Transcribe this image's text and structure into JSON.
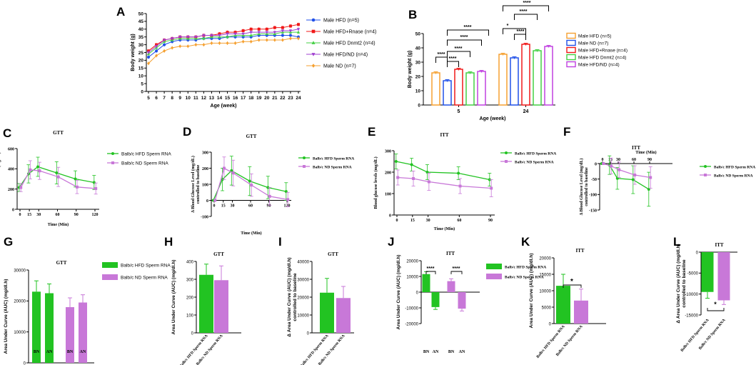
{
  "colors": {
    "green": "#22c322",
    "violet": "#c878d8",
    "blue": "#2050e8",
    "red": "#f01818",
    "green_light": "#44d044",
    "purple": "#a040d0",
    "orange": "#f5a030",
    "bn": "#1b8a1b"
  },
  "chart_data": [
    {
      "id": "A",
      "type": "line",
      "panel_label": "A",
      "title": "",
      "xlabel": "Age (week)",
      "ylabel": "Body weight (g)",
      "categories": [
        "5",
        "6",
        "7",
        "8",
        "9",
        "10",
        "11",
        "12",
        "13",
        "14",
        "15",
        "16",
        "17",
        "18",
        "19",
        "20",
        "21",
        "22",
        "23",
        "24"
      ],
      "ylim": [
        0,
        50
      ],
      "yticks": [
        0,
        5,
        10,
        15,
        20,
        25,
        30,
        35,
        40,
        45,
        50
      ],
      "series": [
        {
          "name": "Male HFD (n=5)",
          "color": "#2050e8",
          "marker": "circle",
          "values": [
            22,
            26,
            30,
            32,
            33,
            33,
            33,
            34,
            34,
            34,
            35,
            35,
            35,
            35,
            36,
            36,
            36,
            36,
            36,
            35
          ]
        },
        {
          "name": "Male HFD+Rnase (n=4)",
          "color": "#f01818",
          "marker": "square",
          "values": [
            26,
            30,
            33,
            34,
            35,
            35,
            35,
            36,
            36,
            37,
            38,
            38,
            39,
            40,
            40,
            40,
            41,
            41,
            42,
            43
          ]
        },
        {
          "name": "Male HFD Dnmt2 (n=4)",
          "color": "#44d044",
          "marker": "triangle",
          "values": [
            24,
            28,
            32,
            33,
            34,
            34,
            34,
            34,
            35,
            35,
            35,
            36,
            36,
            36,
            37,
            37,
            37,
            38,
            38,
            38
          ]
        },
        {
          "name": "Male HFD/ND (n=4)",
          "color": "#a040d0",
          "marker": "triangle-down",
          "values": [
            25,
            29,
            33,
            34,
            35,
            35,
            35,
            36,
            36,
            36,
            37,
            37,
            37,
            38,
            38,
            38,
            38,
            39,
            39,
            40
          ]
        },
        {
          "name": "Male ND (n=7)",
          "color": "#f5a030",
          "marker": "diamond",
          "values": [
            18,
            23,
            26,
            28,
            29,
            29,
            30,
            30,
            31,
            31,
            31,
            31,
            32,
            32,
            33,
            33,
            33,
            33,
            34,
            34
          ]
        }
      ]
    },
    {
      "id": "B",
      "type": "bar",
      "panel_label": "B",
      "xlabel": "Age (week)",
      "ylabel": "Body weight (g)",
      "categories": [
        "5",
        "24"
      ],
      "ylim": [
        0,
        50
      ],
      "yticks": [
        0,
        10,
        20,
        30,
        40,
        50
      ],
      "series": [
        {
          "name": "Male HFD (n=5)",
          "color": "#f5a030",
          "values": [
            22.5,
            35.5
          ]
        },
        {
          "name": "Male ND (n=7)",
          "color": "#2050e8",
          "values": [
            17,
            33
          ]
        },
        {
          "name": "Male HFD+Rnase (n=4)",
          "color": "#f01818",
          "values": [
            25,
            42.5
          ]
        },
        {
          "name": "Male HFD Dnmt2 (n=4)",
          "color": "#44d044",
          "values": [
            22.5,
            38
          ]
        },
        {
          "name": "Male HFD/ND (n=4)",
          "color": "#c040e0",
          "values": [
            23.5,
            41
          ]
        }
      ],
      "annotations": [
        "****",
        "****",
        "****",
        "****",
        "****",
        "*",
        "****",
        "****",
        "****"
      ]
    },
    {
      "id": "C",
      "type": "line",
      "panel_label": "C",
      "title": "GTT",
      "xlabel": "Time (Min)",
      "ylabel": "Blood Glucose Level (mg/dL)",
      "x": [
        0,
        15,
        30,
        60,
        90,
        120
      ],
      "ylim": [
        0,
        600
      ],
      "yticks": [
        0,
        200,
        400,
        600
      ],
      "xticks": [
        0,
        15,
        30,
        60,
        90,
        120
      ],
      "series": [
        {
          "name": "Balb/c HFD Sperm RNA",
          "color": "#22c322",
          "values": [
            215,
            350,
            420,
            360,
            300,
            265
          ],
          "err": [
            40,
            90,
            95,
            110,
            80,
            70
          ]
        },
        {
          "name": "Balb/c ND Sperm RNA",
          "color": "#c878d8",
          "values": [
            215,
            390,
            380,
            320,
            220,
            205
          ],
          "err": [
            40,
            90,
            85,
            95,
            65,
            55
          ]
        }
      ]
    },
    {
      "id": "D",
      "type": "line",
      "panel_label": "D",
      "title": "GTT",
      "xlabel": "Time (Min)",
      "ylabel": "Δ Blood Glucose Level (mg/dL) controlled to baseline",
      "x": [
        0,
        15,
        30,
        60,
        90,
        120
      ],
      "ylim": [
        -100,
        300
      ],
      "yticks": [
        -100,
        0,
        100,
        200,
        300
      ],
      "xticks": [
        0,
        15,
        30,
        60,
        90,
        120
      ],
      "series": [
        {
          "name": "Balb/c HFD Sperm RNA",
          "color": "#22c322",
          "values": [
            0,
            130,
            185,
            120,
            80,
            55
          ],
          "err": [
            0,
            70,
            90,
            90,
            70,
            55
          ]
        },
        {
          "name": "Balb/c ND Sperm RNA",
          "color": "#c878d8",
          "values": [
            0,
            200,
            170,
            95,
            25,
            5
          ],
          "err": [
            0,
            70,
            80,
            70,
            55,
            45
          ]
        }
      ]
    },
    {
      "id": "E",
      "type": "line",
      "panel_label": "E",
      "title": "ITT",
      "xlabel": "Time (Min)",
      "ylabel": "Blood glucose levels (mg/dL)",
      "x": [
        0,
        15,
        30,
        60,
        90
      ],
      "ylim": [
        0,
        300
      ],
      "yticks": [
        0,
        100,
        200,
        300
      ],
      "xticks": [
        0,
        15,
        30,
        60,
        90
      ],
      "series": [
        {
          "name": "Balb/c HFD Sperm RNA",
          "color": "#22c322",
          "values": [
            250,
            235,
            200,
            195,
            165
          ],
          "err": [
            35,
            30,
            35,
            30,
            30
          ]
        },
        {
          "name": "Balb/c ND Sperm RNA",
          "color": "#c878d8",
          "values": [
            175,
            170,
            155,
            135,
            125
          ],
          "err": [
            35,
            35,
            40,
            35,
            40
          ]
        }
      ]
    },
    {
      "id": "F",
      "type": "line",
      "panel_label": "F",
      "title": "ITT",
      "xlabel": "Time (Min)",
      "ylabel": "Δ Blood Glucose Level (mg/dL) controlled to baseline",
      "x": [
        0,
        15,
        30,
        60,
        90
      ],
      "ylim": [
        -150,
        0
      ],
      "yticks": [
        -150,
        -100,
        -50,
        0
      ],
      "xticks": [
        0,
        15,
        30,
        60,
        90
      ],
      "series": [
        {
          "name": "Balb/c HFD Sperm RNA",
          "color": "#22c322",
          "values": [
            0,
            -5,
            -48,
            -52,
            -83
          ],
          "err": [
            0,
            30,
            35,
            45,
            55
          ]
        },
        {
          "name": "Balb/c ND Sperm RNA",
          "color": "#c878d8",
          "values": [
            0,
            -8,
            -20,
            -37,
            -45
          ],
          "err": [
            0,
            25,
            25,
            30,
            35
          ]
        }
      ]
    },
    {
      "id": "G",
      "type": "bar",
      "panel_label": "G",
      "title": "GTT",
      "ylabel": "Area Under Curve (AUC) (mg/dl.h)",
      "categories": [
        "BN",
        "AN",
        "BN",
        "AN"
      ],
      "ylim": [
        0,
        30000
      ],
      "yticks": [
        0,
        10000,
        20000,
        30000
      ],
      "values": [
        23000,
        22500,
        18000,
        19500
      ],
      "err": [
        3500,
        3000,
        3000,
        2500
      ],
      "bar_colors": [
        "#22c322",
        "#22c322",
        "#c878d8",
        "#c878d8"
      ],
      "legend": [
        "Balb/c HFD Sperm RNA",
        "Balb/c ND Sperm RNA"
      ]
    },
    {
      "id": "H",
      "type": "bar",
      "panel_label": "H",
      "title": "GTT",
      "ylabel": "Area Under Curve (AUC) (mg/dl.h)",
      "categories": [
        "Balb/c HFD Sperm RNA",
        "Balb/c ND Sperm RNA"
      ],
      "ylim": [
        0,
        400
      ],
      "yticks": [
        0,
        100,
        200,
        300,
        400
      ],
      "values": [
        325,
        295
      ],
      "err": [
        60,
        80
      ],
      "bar_colors": [
        "#22c322",
        "#c878d8"
      ]
    },
    {
      "id": "I",
      "type": "bar",
      "panel_label": "I",
      "title": "GTT",
      "ylabel": "Δ Area Under Curve (AUC) (mg/dl.h) controlled to baseline",
      "categories": [
        "Balb/c HFD Sperm RNA",
        "Balb/c ND Sperm RNA"
      ],
      "ylim": [
        0,
        40000
      ],
      "yticks": [
        0,
        10000,
        20000,
        30000,
        40000
      ],
      "values": [
        22500,
        19500
      ],
      "err": [
        8000,
        6500
      ],
      "bar_colors": [
        "#22c322",
        "#c878d8"
      ]
    },
    {
      "id": "J",
      "type": "bar",
      "panel_label": "J",
      "title": "ITT",
      "ylabel": "Area Under Curve (AUC) (mg/dl.h)",
      "categories": [
        "BN",
        "AN",
        "BN",
        "AN"
      ],
      "ylim": [
        -20000,
        20000
      ],
      "yticks": [
        -20000,
        -10000,
        0,
        10000,
        20000
      ],
      "values": [
        11500,
        -9500,
        7000,
        -10500
      ],
      "err": [
        1500,
        1500,
        1500,
        1500
      ],
      "bar_colors": [
        "#22c322",
        "#22c322",
        "#c878d8",
        "#c878d8"
      ],
      "legend": [
        "Balb/c HFD Sperm RNA",
        "Balb/c ND Sperm RNA"
      ],
      "annotations": [
        "****",
        "****"
      ]
    },
    {
      "id": "K",
      "type": "bar",
      "panel_label": "K",
      "title": "ITT",
      "ylabel": "Area Under Curve (AUC) (mg/dl.h)",
      "categories": [
        "Balb/c HFD Sperm RNA",
        "Balb/c ND Sperm RNA"
      ],
      "ylim": [
        0,
        20000
      ],
      "yticks": [
        0,
        5000,
        10000,
        15000,
        20000
      ],
      "values": [
        11500,
        7000
      ],
      "err": [
        3500,
        3500
      ],
      "bar_colors": [
        "#22c322",
        "#c878d8"
      ],
      "annotations": [
        "*"
      ]
    },
    {
      "id": "L",
      "type": "bar",
      "panel_label": "L",
      "title": "ITT",
      "ylabel": "Δ Area Under Curve (AUC) (mg/dl.h) controlled to baseline",
      "categories": [
        "Balb/c HFD Sperm RNA",
        "Balb/c ND Sperm RNA"
      ],
      "ylim": [
        -15000,
        0
      ],
      "yticks": [
        -15000,
        -10000,
        -5000,
        0
      ],
      "values": [
        -9500,
        -11500
      ],
      "err": [
        1500,
        1000
      ],
      "bar_colors": [
        "#22c322",
        "#c878d8"
      ],
      "annotations": [
        "*"
      ]
    }
  ]
}
